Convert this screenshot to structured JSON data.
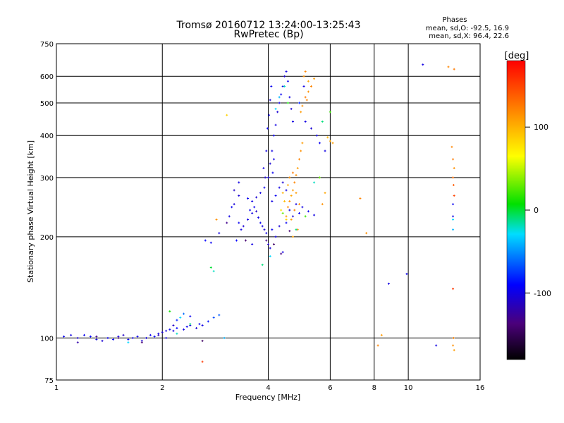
{
  "chart_data": {
    "type": "scatter",
    "title": "Tromsø 20160712 13:24:00-13:25:43",
    "subtitle": "RwPretec (Bp)",
    "phases": {
      "heading": "Phases",
      "line_o": "mean, sd,O: -92.5, 16.9",
      "line_x": "mean, sd,X:  96.4, 22.6"
    },
    "xlabel": "Frequency [MHz]",
    "ylabel": "Stationary phase Virtual Height [km]",
    "x_scale": "log",
    "y_scale": "log",
    "xlim": [
      1,
      16
    ],
    "ylim": [
      75,
      750
    ],
    "x_ticks": [
      1,
      2,
      4,
      6,
      8,
      10,
      16
    ],
    "y_ticks": [
      75,
      100,
      200,
      300,
      400,
      500,
      600,
      750
    ],
    "grid": true,
    "colorbar": {
      "label": "[deg]",
      "ticks": [
        100,
        0,
        -100
      ],
      "range": [
        -180,
        180
      ]
    },
    "series": [
      {
        "points": [
          [
            1.05,
            101,
            -95
          ],
          [
            1.1,
            102,
            -100
          ],
          [
            1.15,
            100,
            -105
          ],
          [
            1.2,
            102,
            -95
          ],
          [
            1.25,
            101,
            -90
          ],
          [
            1.3,
            99,
            -100
          ],
          [
            1.35,
            98,
            -105
          ],
          [
            1.4,
            100,
            -95
          ],
          [
            1.5,
            101,
            -100
          ],
          [
            1.55,
            102,
            -110
          ],
          [
            1.6,
            99,
            -95
          ],
          [
            1.65,
            100,
            -100
          ],
          [
            1.7,
            101,
            -95
          ],
          [
            1.75,
            98,
            -105
          ],
          [
            1.8,
            100,
            -100
          ],
          [
            1.85,
            102,
            -95
          ],
          [
            1.9,
            101,
            -90
          ],
          [
            1.95,
            103,
            -100
          ],
          [
            2.0,
            104,
            -105
          ],
          [
            2.05,
            105,
            -100
          ],
          [
            2.1,
            106,
            -95
          ],
          [
            2.15,
            105,
            -100
          ],
          [
            2.2,
            107,
            -90
          ],
          [
            2.3,
            106,
            -100
          ],
          [
            2.35,
            108,
            -95
          ],
          [
            2.4,
            109,
            -100
          ],
          [
            2.5,
            107,
            -105
          ],
          [
            2.55,
            110,
            -95
          ],
          [
            2.6,
            109,
            -100
          ],
          [
            2.7,
            112,
            -85
          ],
          [
            2.8,
            115,
            -70
          ],
          [
            2.9,
            117,
            -65
          ],
          [
            2.3,
            118,
            -60
          ],
          [
            2.4,
            116,
            -95
          ],
          [
            2.2,
            113,
            -80
          ],
          [
            2.15,
            109,
            -110
          ],
          [
            1.95,
            102,
            -115
          ],
          [
            2.05,
            100,
            -100
          ],
          [
            1.45,
            99,
            -90
          ],
          [
            1.15,
            97,
            -120
          ],
          [
            2.65,
            195,
            -90
          ],
          [
            2.75,
            192,
            -95
          ],
          [
            2.9,
            205,
            -100
          ],
          [
            3.1,
            230,
            -100
          ],
          [
            3.2,
            250,
            -105
          ],
          [
            3.3,
            220,
            -95
          ],
          [
            3.35,
            210,
            -100
          ],
          [
            3.4,
            215,
            -105
          ],
          [
            3.5,
            225,
            -100
          ],
          [
            3.55,
            240,
            -95
          ],
          [
            3.6,
            235,
            -100
          ],
          [
            3.65,
            245,
            -95
          ],
          [
            3.7,
            238,
            -110
          ],
          [
            3.75,
            228,
            -100
          ],
          [
            3.8,
            220,
            -95
          ],
          [
            3.85,
            215,
            -100
          ],
          [
            3.9,
            210,
            -105
          ],
          [
            3.95,
            205,
            -100
          ],
          [
            4.0,
            190,
            -110
          ],
          [
            4.05,
            185,
            -100
          ],
          [
            3.5,
            260,
            -95
          ],
          [
            3.6,
            255,
            -100
          ],
          [
            3.7,
            262,
            -105
          ],
          [
            3.8,
            270,
            -100
          ],
          [
            3.9,
            280,
            -95
          ],
          [
            4.0,
            300,
            -100
          ],
          [
            4.05,
            330,
            -105
          ],
          [
            4.1,
            360,
            -100
          ],
          [
            4.15,
            400,
            -95
          ],
          [
            4.2,
            430,
            -100
          ],
          [
            4.25,
            470,
            -105
          ],
          [
            4.3,
            500,
            -100
          ],
          [
            4.35,
            530,
            -95
          ],
          [
            4.4,
            560,
            -100
          ],
          [
            4.45,
            600,
            -105
          ],
          [
            4.5,
            620,
            -100
          ],
          [
            4.55,
            580,
            -95
          ],
          [
            4.6,
            520,
            -100
          ],
          [
            4.65,
            480,
            -105
          ],
          [
            4.7,
            440,
            -100
          ],
          [
            4.1,
            255,
            -100
          ],
          [
            4.2,
            265,
            -95
          ],
          [
            4.3,
            280,
            -100
          ],
          [
            4.4,
            290,
            -105
          ],
          [
            4.5,
            275,
            -100
          ],
          [
            4.1,
            210,
            -95
          ],
          [
            4.2,
            200,
            -100
          ],
          [
            4.3,
            215,
            -105
          ],
          [
            4.4,
            180,
            -100
          ],
          [
            4.5,
            220,
            -95
          ],
          [
            4.6,
            240,
            -100
          ],
          [
            4.7,
            230,
            -105
          ],
          [
            4.8,
            250,
            -100
          ],
          [
            4.9,
            235,
            -95
          ],
          [
            5.0,
            245,
            -100
          ],
          [
            5.2,
            238,
            -95
          ],
          [
            5.4,
            232,
            -100
          ],
          [
            5.8,
            360,
            -100
          ],
          [
            5.6,
            380,
            -95
          ],
          [
            5.5,
            400,
            -100
          ],
          [
            5.3,
            420,
            -105
          ],
          [
            5.1,
            440,
            -100
          ],
          [
            4.9,
            500,
            -80
          ],
          [
            5.05,
            560,
            -100
          ],
          [
            3.95,
            360,
            -100
          ],
          [
            3.98,
            420,
            -95
          ],
          [
            4.02,
            460,
            -100
          ],
          [
            4.05,
            510,
            -105
          ],
          [
            4.08,
            560,
            -95
          ],
          [
            3.92,
            300,
            -105
          ],
          [
            3.88,
            320,
            -100
          ],
          [
            4.12,
            310,
            -95
          ],
          [
            4.15,
            340,
            -100
          ],
          [
            3.3,
            290,
            -100
          ],
          [
            3.3,
            265,
            -105
          ],
          [
            3.2,
            275,
            -110
          ],
          [
            3.15,
            245,
            -95
          ],
          [
            3.25,
            195,
            -90
          ],
          [
            3.6,
            190,
            -100
          ],
          [
            8.8,
            145,
            -100
          ],
          [
            9.9,
            155,
            -95
          ],
          [
            12.0,
            95,
            -100
          ],
          [
            13.4,
            230,
            -100
          ],
          [
            13.4,
            250,
            -95
          ],
          [
            11.0,
            650,
            -100
          ]
        ]
      },
      {
        "points": [
          [
            4.5,
            230,
            110
          ],
          [
            4.55,
            245,
            120
          ],
          [
            4.6,
            255,
            115
          ],
          [
            4.65,
            265,
            105
          ],
          [
            4.7,
            275,
            110
          ],
          [
            4.75,
            290,
            120
          ],
          [
            4.8,
            305,
            115
          ],
          [
            4.85,
            320,
            110
          ],
          [
            4.9,
            340,
            120
          ],
          [
            4.95,
            360,
            115
          ],
          [
            5.0,
            380,
            110
          ],
          [
            4.55,
            285,
            105
          ],
          [
            4.6,
            300,
            115
          ],
          [
            4.7,
            310,
            125
          ],
          [
            4.8,
            270,
            110
          ],
          [
            4.9,
            250,
            115
          ],
          [
            4.75,
            240,
            120
          ],
          [
            4.65,
            225,
            110
          ],
          [
            4.85,
            210,
            115
          ],
          [
            4.7,
            200,
            105
          ],
          [
            4.4,
            270,
            100
          ],
          [
            4.45,
            255,
            95
          ],
          [
            4.35,
            240,
            80
          ],
          [
            4.5,
            225,
            85
          ],
          [
            5.1,
            520,
            125
          ],
          [
            5.2,
            540,
            115
          ],
          [
            5.3,
            560,
            120
          ],
          [
            5.4,
            590,
            110
          ],
          [
            5.2,
            580,
            105
          ],
          [
            5.05,
            600,
            115
          ],
          [
            5.1,
            620,
            120
          ],
          [
            4.95,
            470,
            110
          ],
          [
            5.0,
            490,
            115
          ],
          [
            5.15,
            510,
            120
          ],
          [
            6.1,
            380,
            110
          ],
          [
            6.0,
            385,
            105
          ],
          [
            5.9,
            395,
            100
          ],
          [
            5.7,
            250,
            115
          ],
          [
            5.8,
            270,
            105
          ],
          [
            7.3,
            260,
            120
          ],
          [
            7.6,
            205,
            115
          ],
          [
            8.2,
            95,
            120
          ],
          [
            8.4,
            102,
            110
          ],
          [
            13.3,
            370,
            120
          ],
          [
            13.4,
            340,
            125
          ],
          [
            13.5,
            320,
            115
          ],
          [
            13.4,
            300,
            130
          ],
          [
            13.45,
            285,
            140
          ],
          [
            13.5,
            265,
            150
          ],
          [
            13.45,
            100,
            120
          ],
          [
            13.4,
            95,
            115
          ],
          [
            13.5,
            92,
            110
          ],
          [
            13.0,
            640,
            120
          ],
          [
            13.5,
            630,
            125
          ],
          [
            13.4,
            140,
            155
          ],
          [
            2.85,
            225,
            115
          ],
          [
            2.6,
            85,
            155
          ],
          [
            3.05,
            460,
            85
          ]
        ]
      },
      {
        "points": [
          [
            2.75,
            162,
            0
          ],
          [
            2.8,
            158,
            -20
          ],
          [
            2.25,
            115,
            -30
          ],
          [
            2.1,
            120,
            10
          ],
          [
            3.0,
            100,
            -40
          ],
          [
            4.05,
            175,
            -30
          ],
          [
            3.85,
            165,
            -10
          ],
          [
            4.8,
            210,
            -10
          ],
          [
            5.1,
            230,
            20
          ],
          [
            5.6,
            300,
            30
          ],
          [
            5.4,
            290,
            -20
          ],
          [
            4.4,
            235,
            30
          ],
          [
            4.2,
            480,
            -30
          ],
          [
            4.3,
            520,
            -40
          ],
          [
            4.45,
            560,
            -20
          ],
          [
            4.55,
            500,
            10
          ],
          [
            6.0,
            470,
            20
          ],
          [
            5.7,
            440,
            -10
          ],
          [
            13.4,
            210,
            -40
          ],
          [
            13.4,
            225,
            -30
          ],
          [
            2.2,
            103,
            -20
          ],
          [
            2.4,
            110,
            -10
          ],
          [
            1.6,
            97,
            -30
          ]
        ]
      },
      {
        "points": [
          [
            1.3,
            101,
            -130
          ],
          [
            1.5,
            100,
            -135
          ],
          [
            1.75,
            97,
            -140
          ],
          [
            2.6,
            98,
            -145
          ],
          [
            3.05,
            220,
            -130
          ],
          [
            3.45,
            195,
            -140
          ],
          [
            3.95,
            195,
            -130
          ],
          [
            4.15,
            190,
            -145
          ],
          [
            4.35,
            178,
            -135
          ],
          [
            4.6,
            208,
            -140
          ]
        ]
      }
    ]
  }
}
